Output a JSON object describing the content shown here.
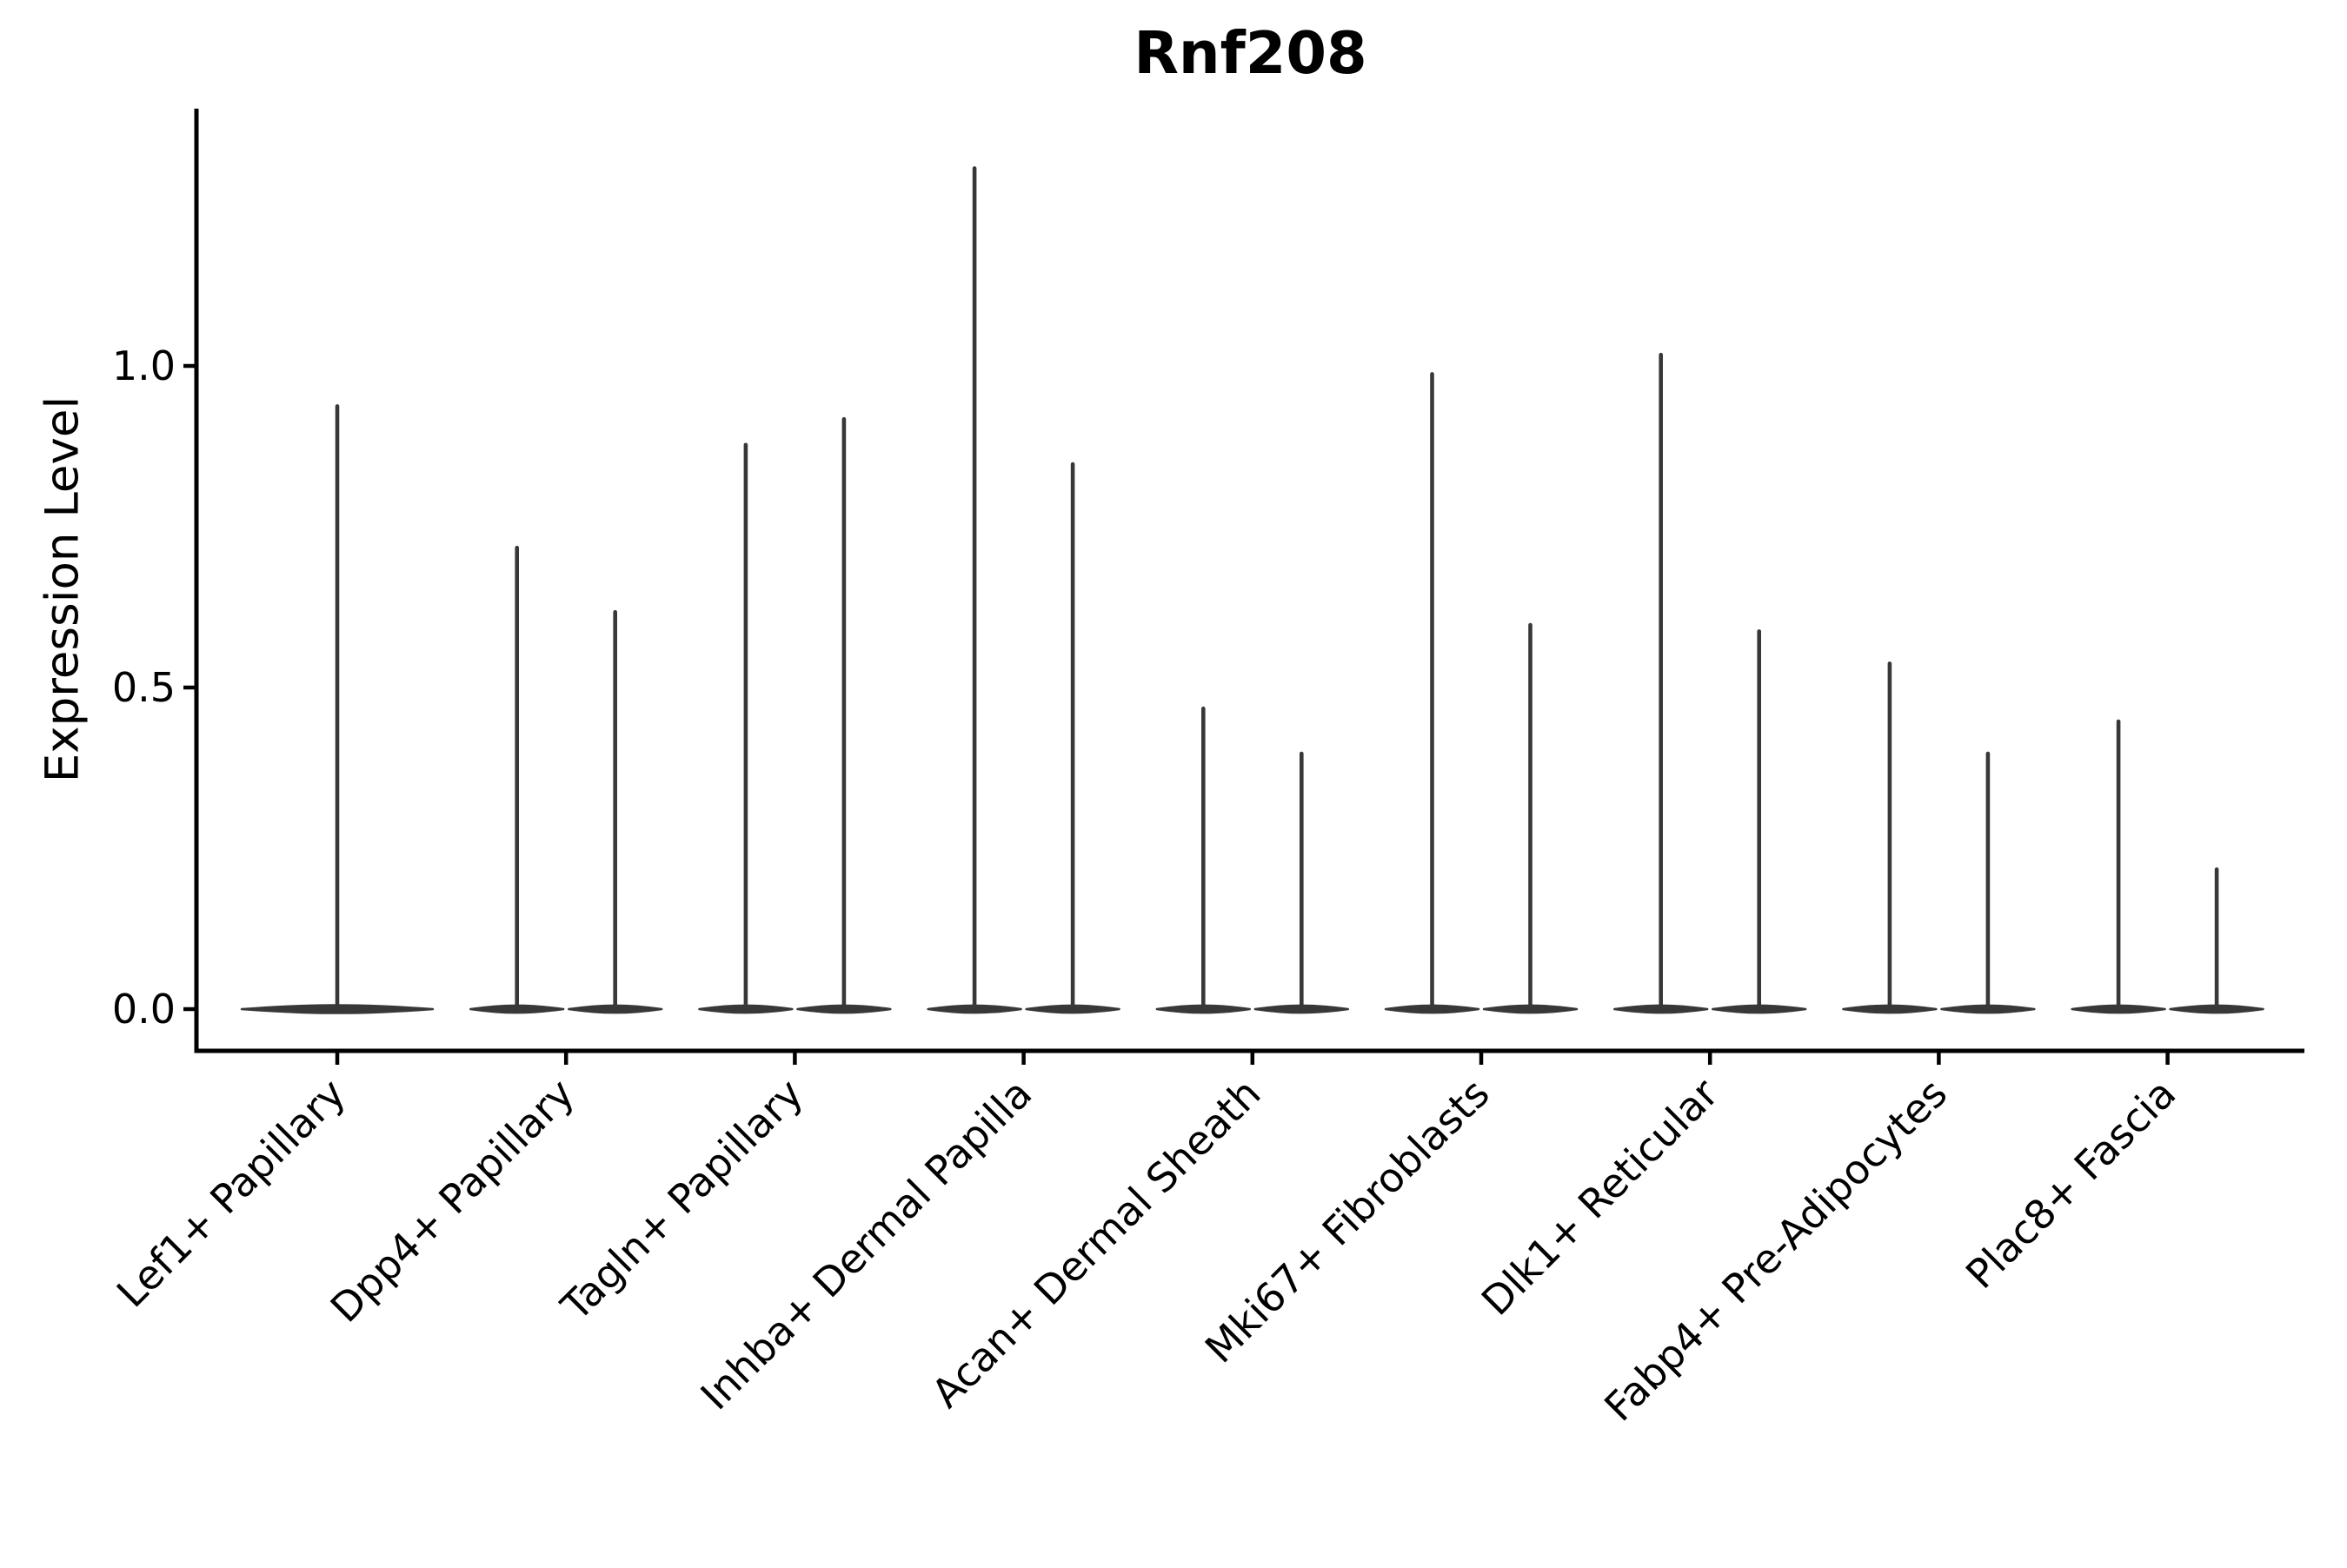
{
  "chart_data": {
    "type": "violin",
    "title": "Rnf208",
    "ylabel": "Expression Level",
    "xlabel": "",
    "grid": false,
    "legend": "none",
    "ylim": [
      -0.065,
      1.41
    ],
    "ytick_labels": [
      "0.0",
      "0.5",
      "1.0"
    ],
    "ytick_values": [
      0.0,
      0.5,
      1.0
    ],
    "categories": [
      "Lef1+ Papillary",
      "Dpp4+ Papillary",
      "Tagln+ Papillary",
      "Inhba+ Dermal Papilla",
      "Acan+ Dermal Sheath",
      "Mki67+ Fibroblasts",
      "Dlk1+ Reticular",
      "Fabp4+ Pre-Adipocytes",
      "Plac8+ Fascia"
    ],
    "series_note": "Each category shows flat zero-density violin bodies with thin spikes rising to the maximum expression value; first category has a single centered violin, all others have two adjacent violins.",
    "spike_values": [
      [
        0.94
      ],
      [
        0.72,
        0.62
      ],
      [
        0.88,
        0.92
      ],
      [
        1.31,
        0.85
      ],
      [
        0.47,
        0.4
      ],
      [
        0.99,
        0.6
      ],
      [
        1.02,
        0.59
      ],
      [
        0.54,
        0.4
      ],
      [
        0.45,
        0.22
      ]
    ],
    "violin_color": "#383838",
    "axis_color": "#000000",
    "text_color": "#000000",
    "background_color": "#ffffff",
    "xtick_label_rotation_deg": 45
  }
}
